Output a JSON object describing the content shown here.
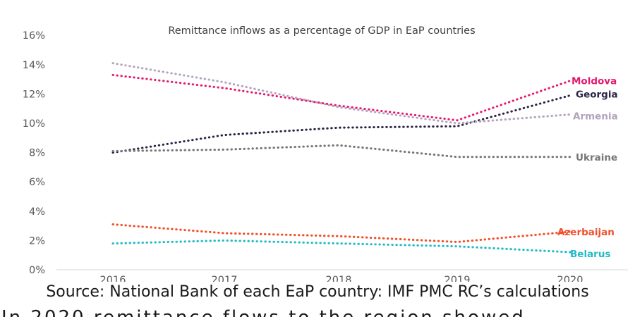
{
  "chart_data": {
    "type": "line",
    "title": "Remittance inflows as a percentage of GDP in EaP countries",
    "x": [
      "2016",
      "2017",
      "2018",
      "2019",
      "2020"
    ],
    "ylim": [
      0,
      16
    ],
    "y_ticks": [
      "0%",
      "2%",
      "4%",
      "6%",
      "8%",
      "10%",
      "12%",
      "14%",
      "16%"
    ],
    "grid": false,
    "line_style": "dotted",
    "legend": "labels at line ends",
    "series": [
      {
        "name": "Moldova",
        "color": "#e6186e",
        "values": [
          13.3,
          12.4,
          11.2,
          10.2,
          12.9
        ]
      },
      {
        "name": "Georgia",
        "color": "#2b2346",
        "values": [
          8.0,
          9.2,
          9.7,
          9.8,
          11.9
        ]
      },
      {
        "name": "Armenia",
        "color": "#b3a3bd",
        "values": [
          14.1,
          12.8,
          11.1,
          10.0,
          10.6
        ]
      },
      {
        "name": "Ukraine",
        "color": "#767676",
        "values": [
          8.1,
          8.2,
          8.5,
          7.7,
          7.7
        ]
      },
      {
        "name": "Azerbaijan",
        "color": "#f0502a",
        "values": [
          3.1,
          2.5,
          2.3,
          1.9,
          2.6
        ]
      },
      {
        "name": "Belarus",
        "color": "#22bcc4",
        "values": [
          1.8,
          2.0,
          1.8,
          1.6,
          1.2
        ]
      }
    ]
  },
  "caption": {
    "source": "Source: National Bank of each EaP country: IMF PMC RC’s calculations",
    "next_line": "In 2020 remittance flows to the region showed…"
  }
}
